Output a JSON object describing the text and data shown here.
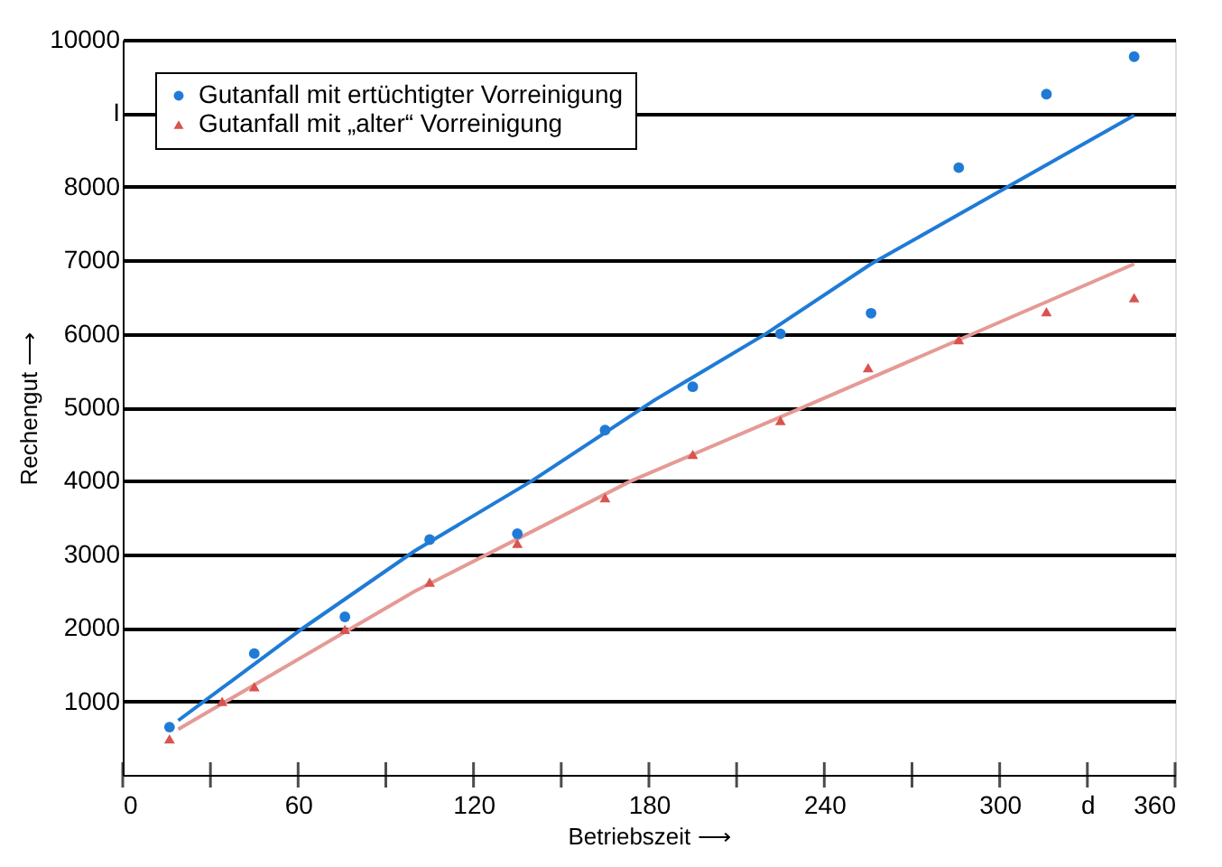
{
  "chart_data": {
    "type": "scatter",
    "xlabel": "Betriebszeit ⟶",
    "ylabel": "Rechengut ⟶",
    "xlim": [
      0,
      360
    ],
    "ylim": [
      0,
      10000
    ],
    "xticks": [
      0,
      {
        "value": 30,
        "label": null
      },
      60,
      {
        "value": 90,
        "label": null
      },
      120,
      {
        "value": 150,
        "label": null
      },
      180,
      {
        "value": 210,
        "label": null
      },
      240,
      {
        "value": 270,
        "label": null
      },
      300,
      {
        "value": 330,
        "label": "d"
      },
      360
    ],
    "yticks": [
      1000,
      2000,
      3000,
      4000,
      5000,
      6000,
      7000,
      8000,
      {
        "value": 9000,
        "label": "I"
      },
      10000
    ],
    "grid": "y",
    "legend": "top left",
    "series": [
      {
        "name": "Gutanfall mit ertüchtigter Vorreinigung",
        "color": "#1f7bd6",
        "marker": "circle",
        "x": [
          16,
          45,
          76,
          105,
          135,
          165,
          195,
          225,
          256,
          286,
          316,
          346
        ],
        "values": [
          650,
          1650,
          2150,
          3200,
          3280,
          4690,
          5280,
          6000,
          6280,
          8260,
          9260,
          9770
        ]
      },
      {
        "name": "Gutanfall mit „alter“ Vorreinigung",
        "color": "#d9534f",
        "marker": "triangle",
        "x": [
          16,
          34,
          45,
          76,
          105,
          135,
          165,
          195,
          225,
          255,
          286,
          316,
          346
        ],
        "values": [
          490,
          1000,
          1200,
          1980,
          2620,
          3150,
          3770,
          4360,
          4820,
          5540,
          5920,
          6300,
          6490
        ]
      },
      {
        "color": "#1f7bd6",
        "type": "line",
        "marker": "none",
        "x": [
          19,
          60,
          100,
          140,
          182,
          220,
          256,
          346
        ],
        "values": [
          740,
          1950,
          3050,
          4000,
          5100,
          6000,
          6950,
          8970
        ]
      },
      {
        "color": "#e59a95",
        "type": "line",
        "marker": "none",
        "x": [
          19,
          100,
          174,
          231,
          346
        ],
        "values": [
          620,
          2500,
          4000,
          4970,
          6950
        ]
      }
    ]
  }
}
